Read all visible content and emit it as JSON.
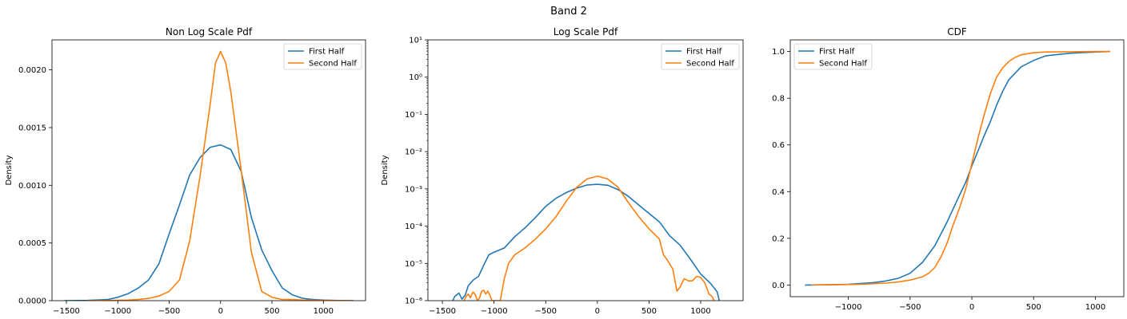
{
  "figure": {
    "suptitle": "Band 2"
  },
  "colors": {
    "first": "#1f77b4",
    "second": "#ff7f0e",
    "axis": "#000000",
    "legend_border": "#cccccc"
  },
  "chart_data": [
    {
      "type": "line",
      "title": "Non Log Scale Pdf",
      "xlabel": "",
      "ylabel": "Density",
      "xscale": "linear",
      "yscale": "linear",
      "xlim": [
        -1640,
        1410
      ],
      "ylim": [
        0,
        0.00226
      ],
      "xticks": [
        -1500,
        -1000,
        -500,
        0,
        500,
        1000
      ],
      "xtick_labels": [
        "−1500",
        "−1000",
        "−500",
        "0",
        "500",
        "1000"
      ],
      "yticks": [
        0,
        0.0005,
        0.001,
        0.0015,
        0.002
      ],
      "ytick_labels": [
        "0.0000",
        "0.0005",
        "0.0010",
        "0.0015",
        "0.0020"
      ],
      "grid": false,
      "legend_position": "top-right",
      "series": [
        {
          "name": "First Half",
          "x": [
            -1520,
            -1300,
            -1100,
            -1000,
            -900,
            -800,
            -700,
            -600,
            -500,
            -400,
            -300,
            -200,
            -100,
            0,
            100,
            200,
            300,
            400,
            500,
            600,
            700,
            800,
            900,
            1000,
            1100,
            1290
          ],
          "y": [
            0,
            2e-06,
            1e-05,
            3e-05,
            6e-05,
            0.00011,
            0.00018,
            0.00032,
            0.00058,
            0.00083,
            0.00109,
            0.00124,
            0.00133,
            0.00135,
            0.00131,
            0.00112,
            0.00072,
            0.00044,
            0.00026,
            0.00011,
            5e-05,
            2e-05,
            1e-05,
            5e-06,
            2e-06,
            0
          ]
        },
        {
          "name": "Second Half",
          "x": [
            -1300,
            -1000,
            -900,
            -800,
            -700,
            -600,
            -500,
            -400,
            -300,
            -200,
            -100,
            -50,
            0,
            50,
            100,
            200,
            300,
            400,
            500,
            600,
            700,
            800,
            900,
            1000,
            1100,
            1290
          ],
          "y": [
            0,
            3e-06,
            5e-06,
            1e-05,
            2e-05,
            4e-05,
            8e-05,
            0.00018,
            0.00052,
            0.00108,
            0.00171,
            0.00206,
            0.00216,
            0.00206,
            0.00181,
            0.00113,
            0.00042,
            8e-05,
            3e-05,
            1e-05,
            1e-05,
            5e-06,
            3e-06,
            2e-06,
            1e-06,
            0
          ]
        }
      ]
    },
    {
      "type": "line",
      "title": "Log Scale Pdf",
      "xlabel": "",
      "ylabel": "Density",
      "xscale": "linear",
      "yscale": "log",
      "xlim": [
        -1640,
        1410
      ],
      "ylim": [
        1e-06,
        10
      ],
      "xticks": [
        -1500,
        -1000,
        -500,
        0,
        500,
        1000
      ],
      "xtick_labels": [
        "−1500",
        "−1000",
        "−500",
        "0",
        "500",
        "1000"
      ],
      "yticks": [
        1e-06,
        1e-05,
        0.0001,
        0.001,
        0.01,
        0.1,
        1,
        10
      ],
      "ytick_labels": [
        "10⁻⁶",
        "10⁻⁵",
        "10⁻⁴",
        "10⁻³",
        "10⁻²",
        "10⁻¹",
        "10⁰",
        "10¹"
      ],
      "grid": false,
      "legend_position": "top-right",
      "series": [
        {
          "name": "First Half",
          "x": [
            -1400,
            -1380,
            -1340,
            -1310,
            -1280,
            -1250,
            -1200,
            -1150,
            -1100,
            -1050,
            -1000,
            -900,
            -800,
            -700,
            -600,
            -500,
            -400,
            -300,
            -200,
            -100,
            0,
            100,
            200,
            300,
            400,
            500,
            600,
            700,
            800,
            900,
            1000,
            1100,
            1160,
            1180
          ],
          "y": [
            1e-06,
            1.3e-06,
            1.6e-06,
            1.1e-06,
            1.4e-06,
            2.5e-06,
            3.6e-06,
            4.5e-06,
            9e-06,
            1.7e-05,
            2e-05,
            2.6e-05,
            5.2e-05,
            9e-05,
            0.00017,
            0.00034,
            0.00056,
            0.0008,
            0.00105,
            0.00127,
            0.00133,
            0.00125,
            0.00096,
            0.00063,
            0.00037,
            0.00022,
            0.00013,
            5.5e-05,
            3.1e-05,
            1.3e-05,
            5.2e-06,
            2.8e-06,
            1.7e-06,
            1e-06
          ]
        },
        {
          "name": "Second Half",
          "x": [
            -1290,
            -1270,
            -1250,
            -1230,
            -1210,
            -1200,
            -1180,
            -1160,
            -1140,
            -1120,
            -1100,
            -1080,
            -1060,
            -1040,
            -1020,
            -940,
            -900,
            -860,
            -800,
            -700,
            -600,
            -500,
            -400,
            -300,
            -200,
            -100,
            0,
            100,
            200,
            300,
            400,
            500,
            600,
            640,
            680,
            730,
            770,
            800,
            840,
            880,
            920,
            960,
            1000,
            1040,
            1080,
            1110,
            1130
          ],
          "y": [
            1e-06,
            1.3e-06,
            1.5e-06,
            1.2e-06,
            1.6e-06,
            1.7e-06,
            1.4e-06,
            1e-06,
            1.2e-06,
            1.8e-06,
            1.9e-06,
            1.5e-06,
            1.8e-06,
            1.4e-06,
            1e-06,
            1e-06,
            4e-06,
            1e-05,
            1.7e-05,
            2.6e-05,
            4.5e-05,
            8.5e-05,
            0.00018,
            0.00047,
            0.0011,
            0.00185,
            0.0022,
            0.00185,
            0.0011,
            0.00043,
            0.00018,
            8.5e-05,
            4.5e-05,
            1.7e-05,
            1.2e-05,
            7e-06,
            1.8e-06,
            2.3e-06,
            3.9e-06,
            3.4e-06,
            3.4e-06,
            4.5e-06,
            4.2e-06,
            3e-06,
            1.5e-06,
            1.3e-06,
            1e-06
          ]
        }
      ]
    },
    {
      "type": "line",
      "title": "CDF",
      "xlabel": "",
      "ylabel": "",
      "xscale": "linear",
      "yscale": "linear",
      "xlim": [
        -1470,
        1230
      ],
      "ylim": [
        -0.05,
        1.05
      ],
      "xticks": [
        -1000,
        -500,
        0,
        500,
        1000
      ],
      "xtick_labels": [
        "−1000",
        "−500",
        "0",
        "500",
        "1000"
      ],
      "yticks": [
        0,
        0.2,
        0.4,
        0.6,
        0.8,
        1.0
      ],
      "ytick_labels": [
        "0.0",
        "0.2",
        "0.4",
        "0.6",
        "0.8",
        "1.0"
      ],
      "grid": false,
      "legend_position": "top-left",
      "series": [
        {
          "name": "First Half",
          "x": [
            -1350,
            -1200,
            -1000,
            -800,
            -700,
            -600,
            -500,
            -400,
            -300,
            -200,
            -100,
            -50,
            0,
            50,
            100,
            150,
            200,
            250,
            300,
            400,
            500,
            600,
            800,
            1000,
            1120
          ],
          "y": [
            0,
            0.001,
            0.003,
            0.01,
            0.017,
            0.028,
            0.05,
            0.097,
            0.168,
            0.27,
            0.385,
            0.44,
            0.51,
            0.575,
            0.64,
            0.7,
            0.77,
            0.83,
            0.88,
            0.935,
            0.962,
            0.982,
            0.993,
            0.998,
            1.0
          ]
        },
        {
          "name": "Second Half",
          "x": [
            -1300,
            -1100,
            -900,
            -700,
            -600,
            -500,
            -400,
            -350,
            -300,
            -250,
            -200,
            -150,
            -100,
            -50,
            0,
            50,
            100,
            150,
            200,
            250,
            300,
            350,
            400,
            500,
            600,
            800,
            1000,
            1120
          ],
          "y": [
            0,
            0.001,
            0.003,
            0.008,
            0.013,
            0.021,
            0.035,
            0.05,
            0.075,
            0.12,
            0.18,
            0.26,
            0.33,
            0.41,
            0.52,
            0.63,
            0.73,
            0.82,
            0.89,
            0.93,
            0.958,
            0.975,
            0.986,
            0.995,
            0.998,
            0.999,
            1.0,
            1.0
          ]
        }
      ]
    }
  ]
}
